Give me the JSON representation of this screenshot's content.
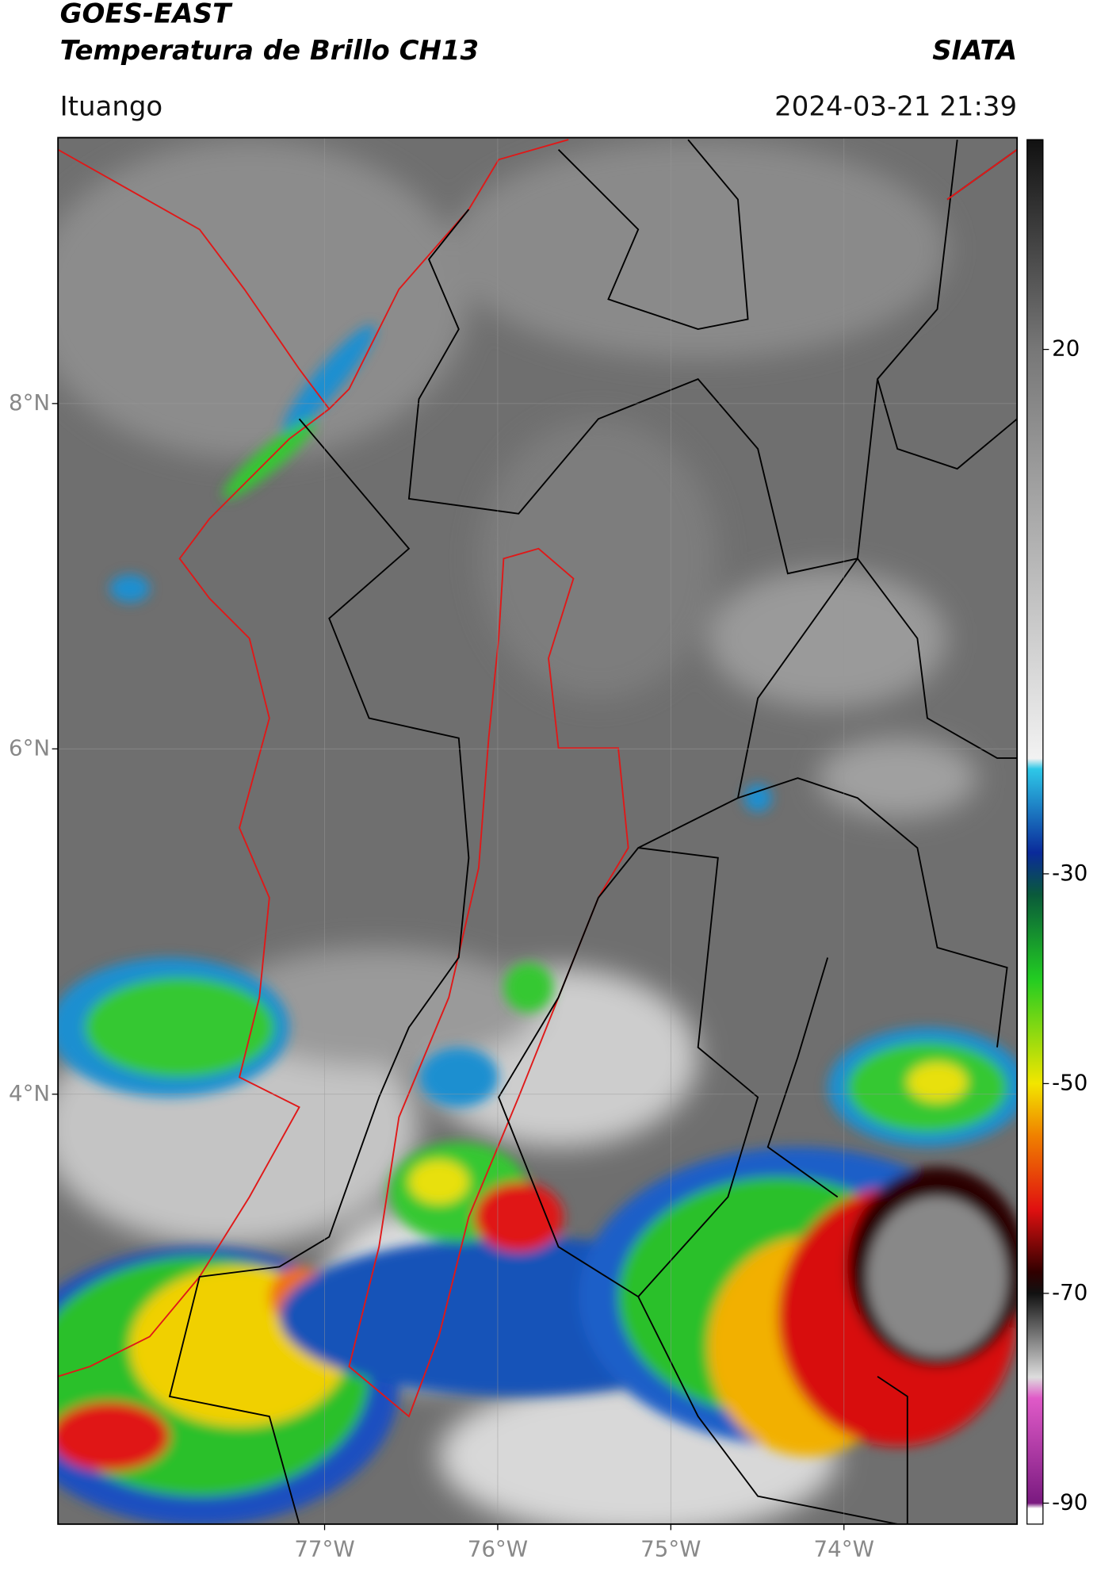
{
  "header": {
    "title": "GOES-EAST",
    "subtitle": "Temperatura de Brillo CH13",
    "source": "SIATA",
    "location": "Ituango",
    "datetime": "2024-03-21 21:39"
  },
  "map": {
    "xlim": [
      -78.54,
      -73.0
    ],
    "ylim": [
      1.51,
      9.54
    ],
    "grid": true,
    "lat_ticks": [
      {
        "value": 8,
        "label": "8°N"
      },
      {
        "value": 6,
        "label": "6°N"
      },
      {
        "value": 4,
        "label": "4°N"
      }
    ],
    "lon_ticks": [
      {
        "value": -77,
        "label": "77°W"
      },
      {
        "value": -76,
        "label": "76°W"
      },
      {
        "value": -75,
        "label": "75°W"
      },
      {
        "value": -74,
        "label": "74°W"
      }
    ]
  },
  "colorbar": {
    "ylim": [
      -92,
      40
    ],
    "ticks": [
      20,
      -30,
      -50,
      -70,
      -90
    ],
    "stops": [
      [
        40,
        "#111111"
      ],
      [
        20,
        "#777777"
      ],
      [
        -19,
        "#f2f2f2"
      ],
      [
        -20,
        "#2ec8e8"
      ],
      [
        -28,
        "#0a2a9a"
      ],
      [
        -32,
        "#0a5a3a"
      ],
      [
        -40,
        "#22cc22"
      ],
      [
        -50,
        "#f2e600"
      ],
      [
        -55,
        "#f08000"
      ],
      [
        -62,
        "#e01010"
      ],
      [
        -68,
        "#300000"
      ],
      [
        -70,
        "#111111"
      ],
      [
        -78,
        "#dddddd"
      ],
      [
        -80,
        "#e05ac8"
      ],
      [
        -90,
        "#7a1a80"
      ],
      [
        -90.5,
        "#ffffff"
      ],
      [
        -92,
        "#ffffff"
      ]
    ]
  }
}
